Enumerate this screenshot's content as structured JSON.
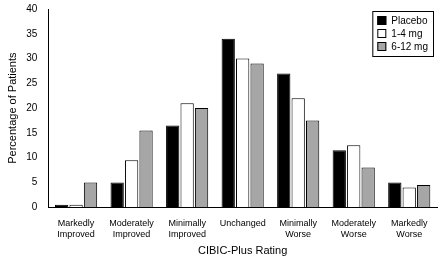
{
  "chart_data": {
    "type": "bar",
    "y_label": "Percentage of Patients",
    "x_label": "CIBIC-Plus Rating",
    "categories": [
      "Markedly Improved",
      "Moderately Improved",
      "Minimally Improved",
      "Unchanged",
      "Minimally Worse",
      "Moderately Worse",
      "Markedly Worse"
    ],
    "series": [
      {
        "name": "Placebo",
        "color": "#000000",
        "values": [
          0.5,
          5,
          16.5,
          34,
          27,
          11.5,
          5
        ]
      },
      {
        "name": "1-4 mg",
        "color": "#ffffff",
        "values": [
          0.5,
          9.5,
          21,
          30,
          22,
          12.5,
          4
        ]
      },
      {
        "name": "6-12 mg",
        "color": "#a6a6a6",
        "values": [
          5,
          15.5,
          20,
          29,
          17.5,
          8,
          4.5
        ]
      }
    ],
    "ylim": [
      0,
      40
    ],
    "yticks": [
      0,
      5,
      10,
      15,
      20,
      25,
      30,
      35,
      40
    ],
    "grid": false,
    "legend": "upper right"
  }
}
